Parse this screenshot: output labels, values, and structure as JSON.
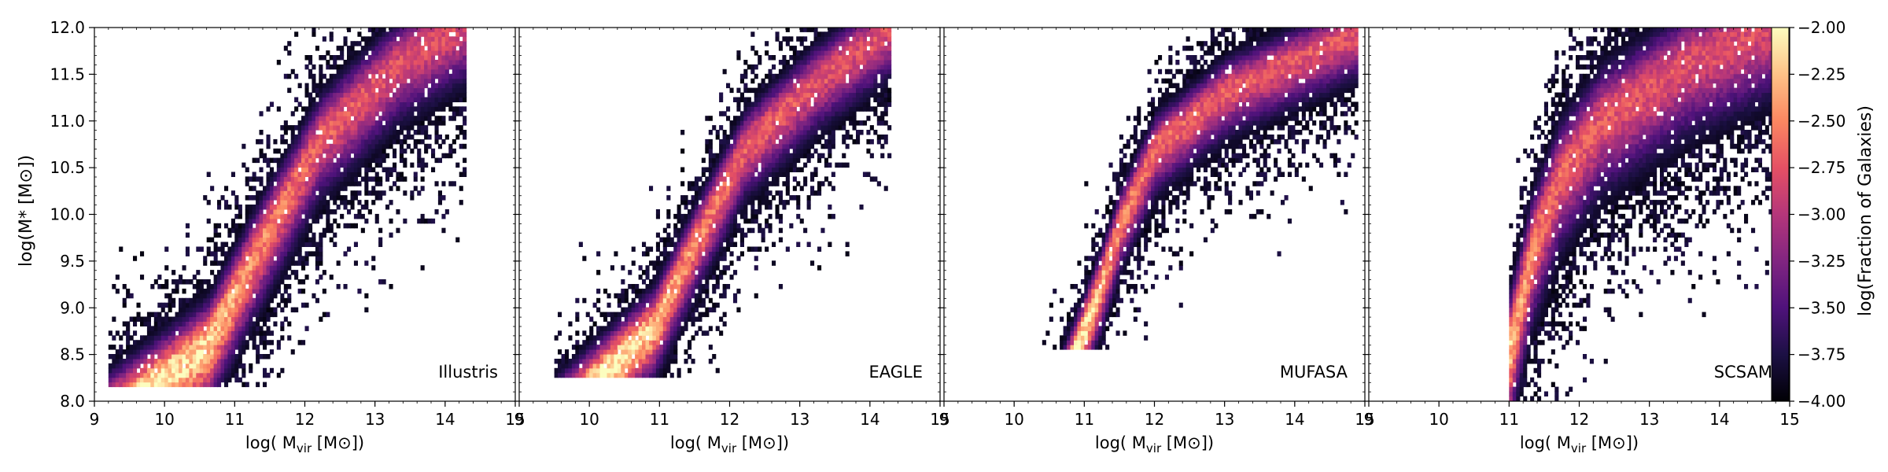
{
  "figure": {
    "ylabel": "log(M* [M⊙])",
    "xlabel": "log( M_vir [M⊙])",
    "xlabel_parts": {
      "pre": "log( M",
      "sub": "vir",
      "post": " [M⊙])"
    },
    "colorbar_label": "log(Fraction of Galaxies)"
  },
  "chart_data": [
    {
      "type": "heatmap",
      "label": "Illustris",
      "xlim": [
        9,
        15
      ],
      "ylim": [
        8.0,
        12.0
      ],
      "xticks": [
        "9",
        "10",
        "11",
        "12",
        "13",
        "14",
        "15"
      ],
      "yticks": [
        "8.0",
        "8.5",
        "9.0",
        "9.5",
        "10.0",
        "10.5",
        "11.0",
        "11.5",
        "12.0"
      ],
      "ridge": [
        [
          9.9,
          8.2
        ],
        [
          10.6,
          8.6
        ],
        [
          11.3,
          9.6
        ],
        [
          12.2,
          10.8
        ],
        [
          13.3,
          11.6
        ],
        [
          14.2,
          12.0
        ]
      ],
      "x_range": [
        9.2,
        14.3
      ],
      "y_floor": 8.15,
      "width": 0.65
    },
    {
      "type": "heatmap",
      "label": "EAGLE",
      "xlim": [
        9,
        15
      ],
      "ylim": [
        8.0,
        12.0
      ],
      "xticks": [
        "9",
        "10",
        "11",
        "12",
        "13",
        "14",
        "15"
      ],
      "yticks": [
        "8.0",
        "8.5",
        "9.0",
        "9.5",
        "10.0",
        "10.5",
        "11.0",
        "11.5",
        "12.0"
      ],
      "ridge": [
        [
          10.2,
          8.3
        ],
        [
          10.9,
          8.8
        ],
        [
          11.5,
          9.7
        ],
        [
          12.2,
          10.7
        ],
        [
          13.2,
          11.4
        ],
        [
          14.3,
          12.0
        ]
      ],
      "x_range": [
        9.5,
        14.3
      ],
      "y_floor": 8.25,
      "width": 0.55
    },
    {
      "type": "heatmap",
      "label": "MUFASA",
      "xlim": [
        9,
        15
      ],
      "ylim": [
        8.0,
        12.0
      ],
      "xticks": [
        "9",
        "10",
        "11",
        "12",
        "13",
        "14",
        "15"
      ],
      "yticks": [
        "8.0",
        "8.5",
        "9.0",
        "9.5",
        "10.0",
        "10.5",
        "11.0",
        "11.5",
        "12.0"
      ],
      "ridge": [
        [
          10.9,
          8.6
        ],
        [
          11.2,
          9.2
        ],
        [
          11.5,
          9.9
        ],
        [
          12.0,
          10.7
        ],
        [
          13.0,
          11.3
        ],
        [
          14.5,
          11.8
        ]
      ],
      "x_range": [
        10.4,
        14.9
      ],
      "y_floor": 8.55,
      "width": 0.5
    },
    {
      "type": "heatmap",
      "label": "SCSAM",
      "xlim": [
        9,
        15
      ],
      "ylim": [
        8.0,
        12.0
      ],
      "xticks": [
        "9",
        "10",
        "11",
        "12",
        "13",
        "14",
        "15"
      ],
      "yticks": [
        "8.0",
        "8.5",
        "9.0",
        "9.5",
        "10.0",
        "10.5",
        "11.0",
        "11.5",
        "12.0"
      ],
      "ridge": [
        [
          11.0,
          8.6
        ],
        [
          11.3,
          9.6
        ],
        [
          11.7,
          10.4
        ],
        [
          12.3,
          11.0
        ],
        [
          13.5,
          11.6
        ],
        [
          14.7,
          12.0
        ]
      ],
      "x_range": [
        11.0,
        14.8
      ],
      "y_floor": 8.0,
      "width": 0.8
    }
  ],
  "colorbar": {
    "range": [
      -4.0,
      -2.0
    ],
    "ticks": [
      "-2.00",
      "-2.25",
      "-2.50",
      "-2.75",
      "-3.00",
      "-3.25",
      "-3.50",
      "-3.75",
      "-4.00"
    ],
    "colormap": [
      "#000004",
      "#1c1044",
      "#4f127b",
      "#812581",
      "#b5367a",
      "#e55064",
      "#fb8761",
      "#fec287",
      "#fcfdbf"
    ]
  }
}
